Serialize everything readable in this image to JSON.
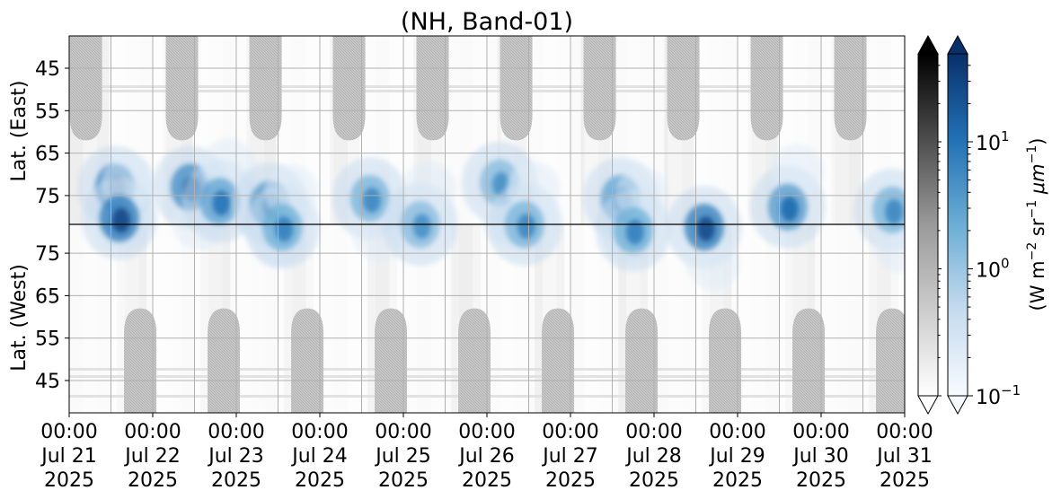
{
  "chart_data": {
    "type": "heatmap",
    "title": "(NH, Band-01)",
    "xlabel": "",
    "y_axis_top": {
      "label": "Lat. (East)",
      "ticks": [
        "45",
        "55",
        "65",
        "75"
      ],
      "tick_values": [
        45,
        55,
        65,
        75
      ]
    },
    "y_axis_bottom": {
      "label": "Lat. (West)",
      "ticks": [
        "75",
        "65",
        "55",
        "45"
      ],
      "tick_values": [
        75,
        65,
        55,
        45
      ]
    },
    "x_ticks": [
      {
        "time": "00:00",
        "day": "Jul 21",
        "year": "2025"
      },
      {
        "time": "00:00",
        "day": "Jul 22",
        "year": "2025"
      },
      {
        "time": "00:00",
        "day": "Jul 23",
        "year": "2025"
      },
      {
        "time": "00:00",
        "day": "Jul 24",
        "year": "2025"
      },
      {
        "time": "00:00",
        "day": "Jul 25",
        "year": "2025"
      },
      {
        "time": "00:00",
        "day": "Jul 26",
        "year": "2025"
      },
      {
        "time": "00:00",
        "day": "Jul 27",
        "year": "2025"
      },
      {
        "time": "00:00",
        "day": "Jul 28",
        "year": "2025"
      },
      {
        "time": "00:00",
        "day": "Jul 29",
        "year": "2025"
      },
      {
        "time": "00:00",
        "day": "Jul 30",
        "year": "2025"
      },
      {
        "time": "00:00",
        "day": "Jul 31",
        "year": "2025"
      }
    ],
    "x_range": [
      "2025-07-21 00:00",
      "2025-07-31 00:00"
    ],
    "grid": true,
    "colorbars": [
      {
        "name": "gray",
        "scale": "log",
        "extend": "both",
        "colors": [
          "#ffffff",
          "#000000"
        ]
      },
      {
        "name": "blues",
        "scale": "log",
        "extend": "both",
        "colors": [
          "#f7fbff",
          "#08306b"
        ],
        "tick_labels": [
          "10",
          "10",
          "10"
        ],
        "tick_exponents": [
          "−1",
          "0",
          "1"
        ],
        "tick_values": [
          0.1,
          1,
          10
        ]
      }
    ],
    "colorbar_label": {
      "main": "(W m",
      "e1": "−2",
      "mid": " sr",
      "e2": "−1",
      "mu": " μm",
      "e3": "−1",
      "end": ")"
    },
    "gray_periodic_regions": {
      "top_east_centers_days": [
        0.2,
        1.35,
        2.35,
        3.35,
        4.35,
        5.35,
        6.35,
        7.35,
        8.35,
        9.35
      ],
      "bottom_west_centers_days": [
        0.85,
        1.85,
        2.85,
        3.85,
        4.85,
        5.85,
        6.85,
        7.85,
        8.85,
        9.85
      ],
      "reach_lat": 62
    },
    "intensity_blobs_days_lat": [
      {
        "day": 0.55,
        "lat": 73,
        "val": 18
      },
      {
        "day": 0.6,
        "lat": 83,
        "val": 22
      },
      {
        "day": 1.45,
        "lat": 73,
        "val": 14
      },
      {
        "day": 1.8,
        "lat": 77,
        "val": 8
      },
      {
        "day": 2.4,
        "lat": 78,
        "val": 10
      },
      {
        "day": 2.55,
        "lat": 84,
        "val": 6
      },
      {
        "day": 3.6,
        "lat": 76,
        "val": 5
      },
      {
        "day": 4.2,
        "lat": 85,
        "val": 4
      },
      {
        "day": 5.15,
        "lat": 72,
        "val": 4
      },
      {
        "day": 5.45,
        "lat": 85,
        "val": 5
      },
      {
        "day": 6.6,
        "lat": 76,
        "val": 8
      },
      {
        "day": 6.75,
        "lat": 83,
        "val": 6
      },
      {
        "day": 7.6,
        "lat": 86,
        "val": 20
      },
      {
        "day": 8.6,
        "lat": 79,
        "val": 10
      },
      {
        "day": 9.85,
        "lat": 80,
        "val": 5
      }
    ]
  }
}
